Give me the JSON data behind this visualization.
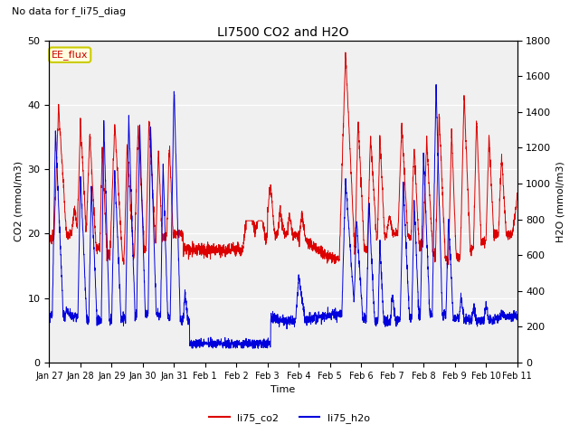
{
  "title": "LI7500 CO2 and H2O",
  "subtitle": "No data for f_li75_diag",
  "xlabel": "Time",
  "ylabel_left": "CO2 (mmol/m3)",
  "ylabel_right": "H2O (mmol/m3)",
  "legend_label1": "li75_co2",
  "legend_label2": "li75_h2o",
  "legend_box_label": "EE_flux",
  "co2_color": "#dd0000",
  "h2o_color": "#0000dd",
  "ylim_left": [
    0,
    50
  ],
  "ylim_right": [
    0,
    1800
  ],
  "xtick_labels": [
    "Jan 27",
    "Jan 28",
    "Jan 29",
    "Jan 30",
    "Jan 31",
    "Feb 1",
    "Feb 2",
    "Feb 3",
    "Feb 4",
    "Feb 5",
    "Feb 6",
    "Feb 7",
    "Feb 8",
    "Feb 9",
    "Feb 10",
    "Feb 11"
  ],
  "figsize": [
    6.4,
    4.8
  ],
  "dpi": 100
}
